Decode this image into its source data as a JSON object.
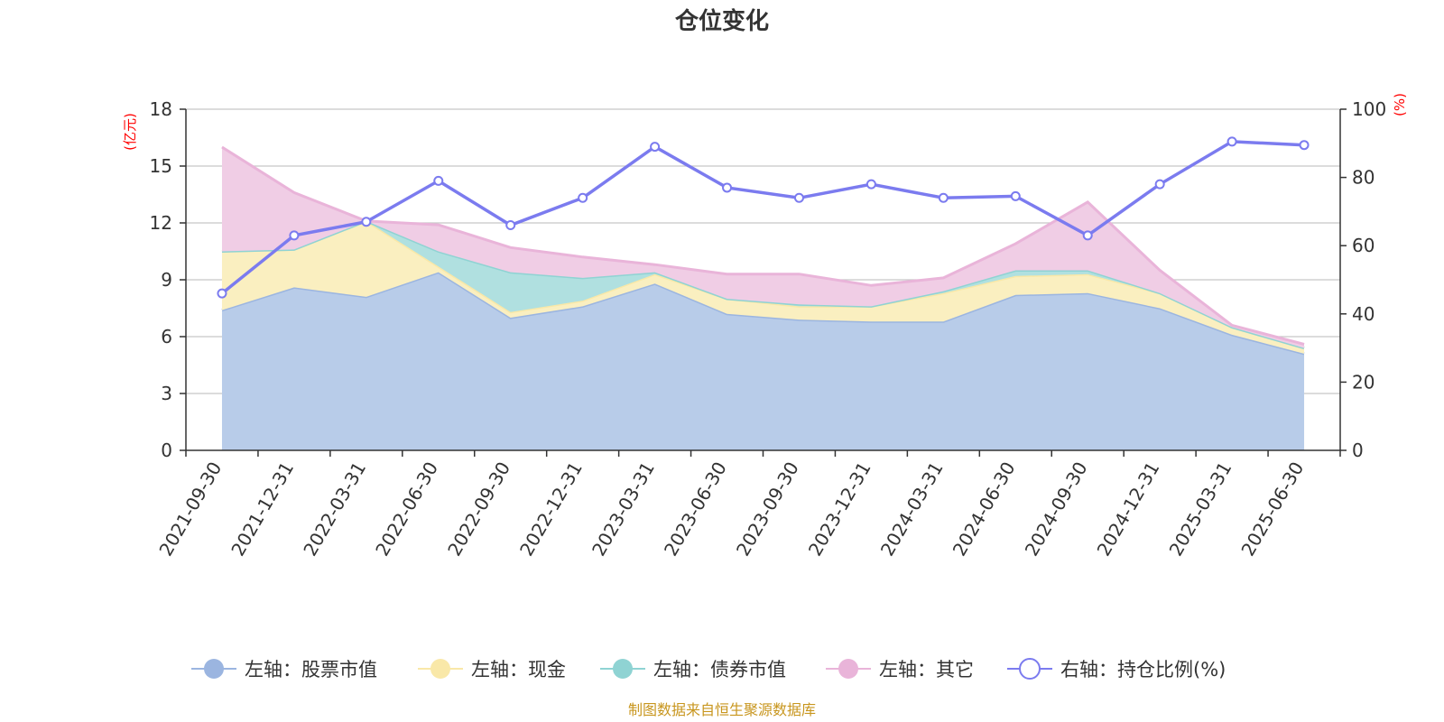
{
  "chart_data": {
    "type": "area",
    "title": "仓位变化",
    "source_text": "制图数据来自恒生聚源数据库",
    "categories": [
      "2021-09-30",
      "2021-12-31",
      "2022-03-31",
      "2022-06-30",
      "2022-09-30",
      "2022-12-31",
      "2023-03-31",
      "2023-06-30",
      "2023-09-30",
      "2023-12-31",
      "2024-03-31",
      "2024-06-30",
      "2024-09-30",
      "2024-12-31",
      "2025-03-31",
      "2025-06-30"
    ],
    "left_axis": {
      "unit": "(亿元)",
      "ylim": [
        0,
        18
      ],
      "ticks": [
        0,
        3,
        6,
        9,
        12,
        15,
        18
      ]
    },
    "right_axis": {
      "unit": "(%)",
      "ylim": [
        0,
        100
      ],
      "ticks": [
        0,
        20,
        40,
        60,
        80,
        100
      ]
    },
    "grid": true,
    "legend_position": "bottom",
    "series": [
      {
        "name": "左轴：股票市值",
        "axis": "left",
        "kind": "stacked-area",
        "color": "#9bb5e0",
        "fill": "#b8cce9",
        "values": [
          7.4,
          8.6,
          8.1,
          9.4,
          7.0,
          7.6,
          8.8,
          7.2,
          6.9,
          6.8,
          6.8,
          8.2,
          8.3,
          7.5,
          6.1,
          5.1
        ]
      },
      {
        "name": "左轴：现金",
        "axis": "left",
        "kind": "stacked-area",
        "color": "#f9e8a8",
        "fill": "#faefc0",
        "values": [
          3.1,
          2.0,
          4.0,
          0.3,
          0.3,
          0.3,
          0.5,
          0.8,
          0.7,
          0.8,
          1.5,
          1.0,
          1.0,
          0.8,
          0.4,
          0.3
        ]
      },
      {
        "name": "左轴：债券市值",
        "axis": "left",
        "kind": "stacked-area",
        "color": "#8fd3d3",
        "fill": "#b0e0e0",
        "values": [
          0,
          0,
          0,
          0.8,
          2.1,
          1.2,
          0.1,
          0.0,
          0.1,
          0.0,
          0.1,
          0.3,
          0.2,
          0,
          0,
          0
        ]
      },
      {
        "name": "左轴：其它",
        "axis": "left",
        "kind": "stacked-area",
        "color": "#e9b4d9",
        "fill": "#f0cde5",
        "values": [
          5.5,
          3.0,
          0.0,
          1.4,
          1.3,
          1.1,
          0.4,
          1.3,
          1.6,
          1.1,
          0.7,
          1.4,
          3.6,
          1.2,
          0.1,
          0.2
        ]
      },
      {
        "name": "右轴：持仓比例(%)",
        "axis": "right",
        "kind": "line",
        "color": "#7b7bef",
        "values": [
          46,
          63,
          67,
          79,
          66,
          74,
          89,
          77,
          74,
          78,
          74,
          74.5,
          63,
          78,
          90.5,
          89.5
        ]
      }
    ]
  }
}
